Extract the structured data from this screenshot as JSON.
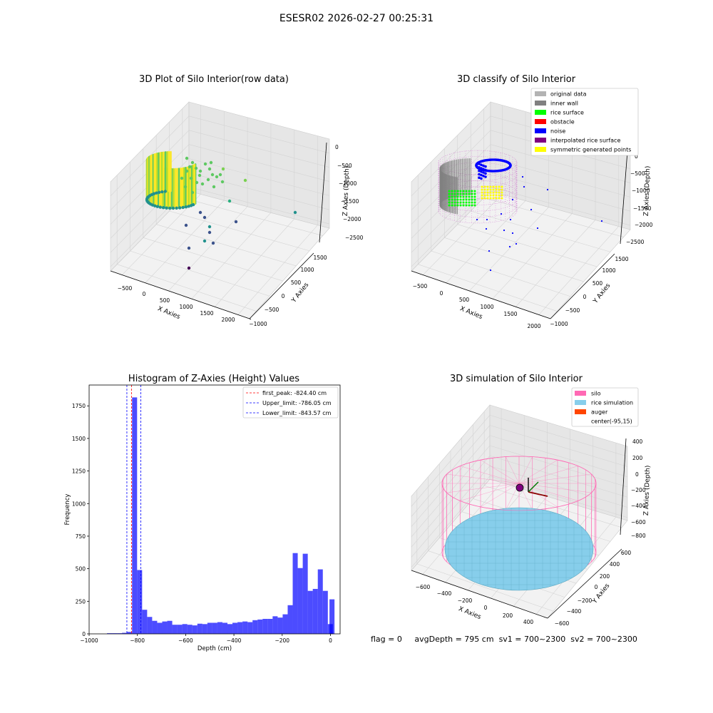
{
  "figure": {
    "suptitle": "ESESR02 2026-02-27 00:25:31",
    "status_line": {
      "flag": "flag = 0",
      "avg_depth": "avgDepth = 795 cm",
      "sv1": "sv1 = 700~2300",
      "sv2": "sv2 = 700~2300"
    }
  },
  "chart_data": [
    {
      "type": "scatter",
      "projection": "3d",
      "title": "3D Plot of Silo Interior(row data)",
      "xlabel": "X Axies",
      "ylabel": "Y Axies",
      "zlabel": "Z Axies (Depth)",
      "xticks": [
        "−500",
        "0",
        "500",
        "1000",
        "1500",
        "2000"
      ],
      "yticks": [
        "−1000",
        "−500",
        "0",
        "500",
        "1000",
        "1500"
      ],
      "zticks": [
        "0",
        "−500",
        "−1000",
        "−1500",
        "−2000",
        "−2500"
      ],
      "xlim": [
        -700,
        2100
      ],
      "ylim": [
        -1000,
        1700
      ],
      "zlim": [
        -2700,
        0
      ],
      "colormap": [
        "#440154",
        "#3b528b",
        "#21918c",
        "#5ec962",
        "#fde725"
      ],
      "description_points": [
        {
          "x": 900,
          "y": -200,
          "z": -700
        },
        {
          "x": 1400,
          "y": 500,
          "z": -1500
        },
        {
          "x": 1000,
          "y": -700,
          "z": -2000
        },
        {
          "x": 500,
          "y": -600,
          "z": -2500
        }
      ]
    },
    {
      "type": "scatter",
      "projection": "3d",
      "title": "3D classify of Silo Interior",
      "xlabel": "X Axies",
      "ylabel": "Y Axies",
      "zlabel": "Z Axies (Depth)",
      "xticks": [
        "−500",
        "0",
        "500",
        "1000",
        "1500",
        "2000"
      ],
      "yticks": [
        "−1000",
        "−500",
        "0",
        "500",
        "1000",
        "1500"
      ],
      "zticks": [
        "0",
        "−500",
        "−1000",
        "−1500",
        "−2000",
        "−2500"
      ],
      "legend_position": "upper right",
      "legend": [
        {
          "label": "original data",
          "color": "#b3b3b3"
        },
        {
          "label": "inner wall",
          "color": "#808080"
        },
        {
          "label": "rice surface",
          "color": "#00ff00"
        },
        {
          "label": "obstacle",
          "color": "#ff0000"
        },
        {
          "label": "noise",
          "color": "#0000ff"
        },
        {
          "label": "interpolated rice surface",
          "color": "#800080"
        },
        {
          "label": "symmetric generated points",
          "color": "#ffff00"
        }
      ]
    },
    {
      "type": "bar",
      "title": "Histogram of Z-Axies (Height) Values",
      "xlabel": "Depth (cm)",
      "ylabel": "Frequency",
      "xlim": [
        -1000,
        40
      ],
      "ylim": [
        0,
        1910
      ],
      "xticks": [
        -1000,
        -800,
        -600,
        -400,
        -200,
        0
      ],
      "yticks": [
        0,
        250,
        500,
        750,
        1000,
        1250,
        1500,
        1750
      ],
      "bar_color": "#0000ff",
      "bin_width": 20.8,
      "bins": [
        {
          "start": -926.0,
          "count": 5
        },
        {
          "start": -905.2,
          "count": 5
        },
        {
          "start": -884.4,
          "count": 5
        },
        {
          "start": -863.6,
          "count": 8
        },
        {
          "start": -842.8,
          "count": 15
        },
        {
          "start": -822.0,
          "count": 1815
        },
        {
          "start": -801.2,
          "count": 490
        },
        {
          "start": -780.4,
          "count": 185
        },
        {
          "start": -759.6,
          "count": 130
        },
        {
          "start": -738.8,
          "count": 100
        },
        {
          "start": -718.0,
          "count": 85
        },
        {
          "start": -697.2,
          "count": 95
        },
        {
          "start": -676.4,
          "count": 100
        },
        {
          "start": -655.6,
          "count": 70
        },
        {
          "start": -634.8,
          "count": 70
        },
        {
          "start": -614.0,
          "count": 75
        },
        {
          "start": -593.2,
          "count": 70
        },
        {
          "start": -572.4,
          "count": 65
        },
        {
          "start": -551.6,
          "count": 78
        },
        {
          "start": -530.8,
          "count": 75
        },
        {
          "start": -510.0,
          "count": 85
        },
        {
          "start": -489.2,
          "count": 85
        },
        {
          "start": -468.4,
          "count": 90
        },
        {
          "start": -447.6,
          "count": 85
        },
        {
          "start": -426.8,
          "count": 75
        },
        {
          "start": -406.0,
          "count": 85
        },
        {
          "start": -385.2,
          "count": 90
        },
        {
          "start": -364.4,
          "count": 95
        },
        {
          "start": -343.6,
          "count": 90
        },
        {
          "start": -322.8,
          "count": 105
        },
        {
          "start": -302.0,
          "count": 110
        },
        {
          "start": -281.2,
          "count": 115
        },
        {
          "start": -260.4,
          "count": 115
        },
        {
          "start": -239.6,
          "count": 135
        },
        {
          "start": -218.8,
          "count": 125
        },
        {
          "start": -198.0,
          "count": 150
        },
        {
          "start": -177.2,
          "count": 220
        },
        {
          "start": -156.4,
          "count": 620
        },
        {
          "start": -135.6,
          "count": 505
        },
        {
          "start": -114.8,
          "count": 615
        },
        {
          "start": -94.0,
          "count": 330
        },
        {
          "start": -73.2,
          "count": 345
        },
        {
          "start": -52.4,
          "count": 495
        },
        {
          "start": -31.6,
          "count": 330
        },
        {
          "start": -10.8,
          "count": 75
        },
        {
          "start": -4.0,
          "count": 265
        }
      ],
      "vlines": [
        {
          "x": -824.4,
          "color": "#ff0000",
          "label": "first_peak: -824.40 cm"
        },
        {
          "x": -786.05,
          "color": "#0000ff",
          "label": "Upper_limit: -786.05 cm"
        },
        {
          "x": -843.57,
          "color": "#0000ff",
          "label": "Lower_limit: -843.57 cm"
        }
      ],
      "legend_position": "upper right"
    },
    {
      "type": "surface",
      "projection": "3d",
      "title": "3D simulation of Silo Interior",
      "xlabel": "X Axies",
      "ylabel": "Y Axies",
      "zlabel": "Z Axies (Depth)",
      "xticks": [
        "−600",
        "−400",
        "−200",
        "0",
        "200",
        "400"
      ],
      "yticks": [
        "−600",
        "−400",
        "−200",
        "0",
        "200",
        "400",
        "600"
      ],
      "zticks": [
        "400",
        "200",
        "0",
        "−200",
        "−400",
        "−600",
        "−800"
      ],
      "legend_position": "upper right",
      "legend": [
        {
          "label": "silo",
          "color": "#ff69b4"
        },
        {
          "label": "rice simulation",
          "color": "#87ceeb"
        },
        {
          "label": "auger",
          "color": "#ff4500"
        },
        {
          "label": "center(-95,15)",
          "color": "#ffffff"
        }
      ]
    }
  ]
}
